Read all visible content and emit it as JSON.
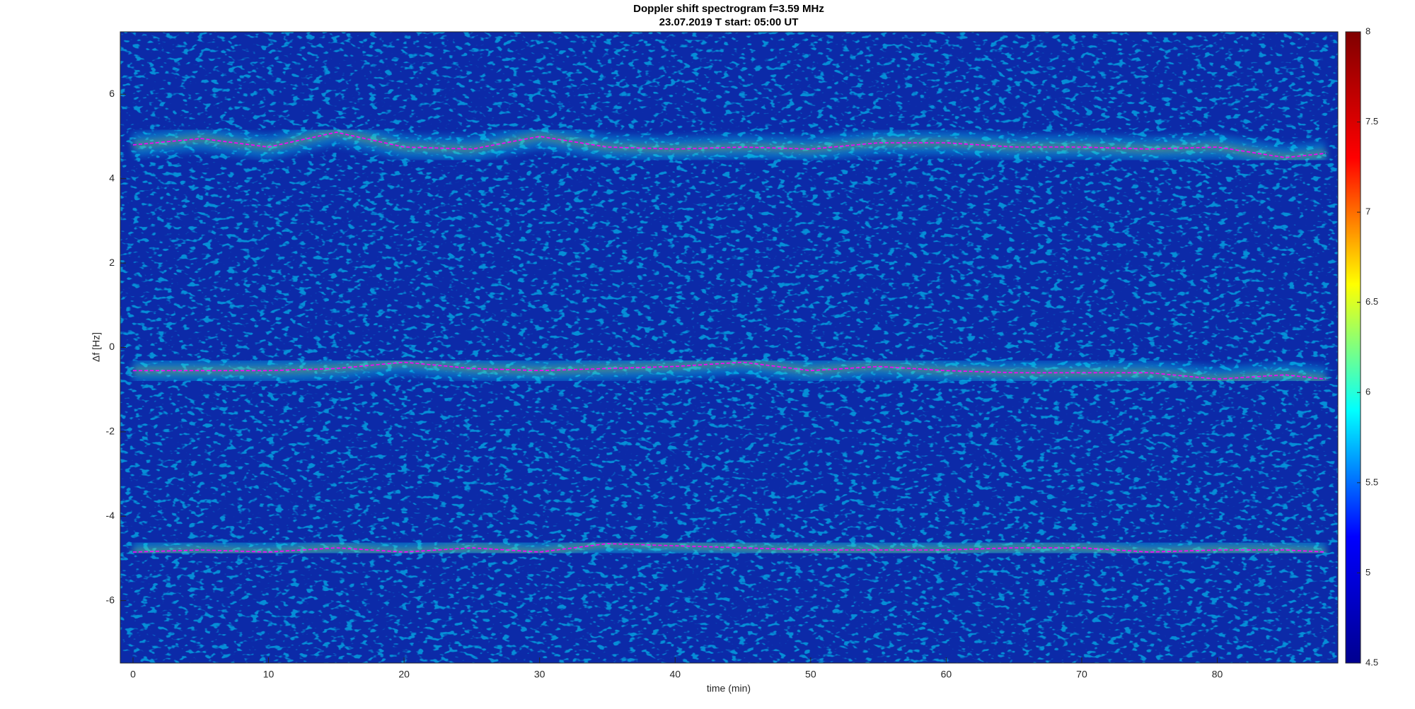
{
  "chart_data": {
    "type": "spectrogram",
    "title": "Doppler shift spectrogram f=3.59 MHz",
    "subtitle": "23.07.2019   T start: 05:00 UT",
    "xlabel": "time (min)",
    "ylabel": "Δf [Hz]",
    "x": [
      0,
      5,
      10,
      15,
      20,
      25,
      30,
      35,
      40,
      45,
      50,
      55,
      60,
      65,
      70,
      75,
      80,
      85,
      88
    ],
    "series": [
      {
        "color": "#ff00ff",
        "values": [
          4.8,
          4.95,
          4.75,
          5.1,
          4.75,
          4.7,
          5.0,
          4.75,
          4.7,
          4.75,
          4.7,
          4.85,
          4.85,
          4.75,
          4.75,
          4.7,
          4.75,
          4.5,
          4.6
        ]
      },
      {
        "color": "#ff00ff",
        "values": [
          -0.55,
          -0.55,
          -0.55,
          -0.5,
          -0.35,
          -0.5,
          -0.55,
          -0.5,
          -0.45,
          -0.35,
          -0.55,
          -0.45,
          -0.55,
          -0.6,
          -0.6,
          -0.6,
          -0.75,
          -0.65,
          -0.75
        ]
      },
      {
        "color": "#ff00ff",
        "values": [
          -4.85,
          -4.8,
          -4.85,
          -4.75,
          -4.85,
          -4.75,
          -4.85,
          -4.65,
          -4.7,
          -4.75,
          -4.8,
          -4.8,
          -4.8,
          -4.75,
          -4.75,
          -4.85,
          -4.8,
          -4.8,
          -4.85
        ]
      }
    ],
    "xlim": [
      -0.94,
      88.9
    ],
    "xticks": [
      0,
      10,
      20,
      30,
      40,
      50,
      60,
      70,
      80
    ],
    "ylim": [
      -7.48,
      7.48
    ],
    "yticks": [
      -6,
      -4,
      -2,
      0,
      2,
      4,
      6
    ],
    "background": "#0c2aa8",
    "colorbar": {
      "lim": [
        4.5,
        8
      ],
      "ticks": [
        4.5,
        5,
        5.5,
        6,
        6.5,
        7,
        7.5,
        8
      ],
      "colormap": [
        "#00008f",
        "#0000ff",
        "#00ffff",
        "#ffff00",
        "#ff0000",
        "#800000"
      ]
    }
  }
}
